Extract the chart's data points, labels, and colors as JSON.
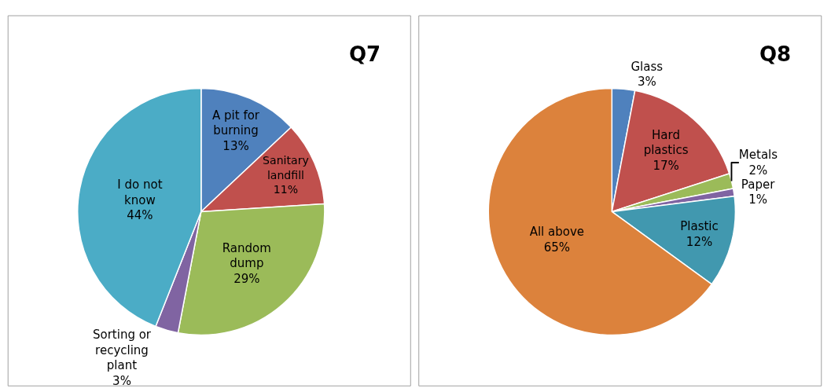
{
  "chart_data": [
    {
      "type": "pie",
      "title": "Q7",
      "categories": [
        "A pit for burning",
        "Sanitary landfill",
        "Random dump",
        "Sorting or recycling plant",
        "I do not know"
      ],
      "values": [
        13,
        11,
        29,
        3,
        44
      ],
      "value_labels": [
        "13%",
        "11%",
        "29%",
        "3%",
        "44%"
      ],
      "colors": [
        "#4f81bd",
        "#c0504d",
        "#9bbb59",
        "#8064a2",
        "#4bacc6"
      ],
      "legend": false
    },
    {
      "type": "pie",
      "title": "Q8",
      "categories": [
        "Glass",
        "Hard plastics",
        "Metals",
        "Paper",
        "Plastic",
        "All above"
      ],
      "values": [
        3,
        17,
        2,
        1,
        12,
        65
      ],
      "value_labels": [
        "3%",
        "17%",
        "2%",
        "1%",
        "12%",
        "65%"
      ],
      "colors": [
        "#4f81bd",
        "#c0504d",
        "#9bbb59",
        "#8064a2",
        "#4198af",
        "#dc823c"
      ],
      "legend": false
    }
  ]
}
